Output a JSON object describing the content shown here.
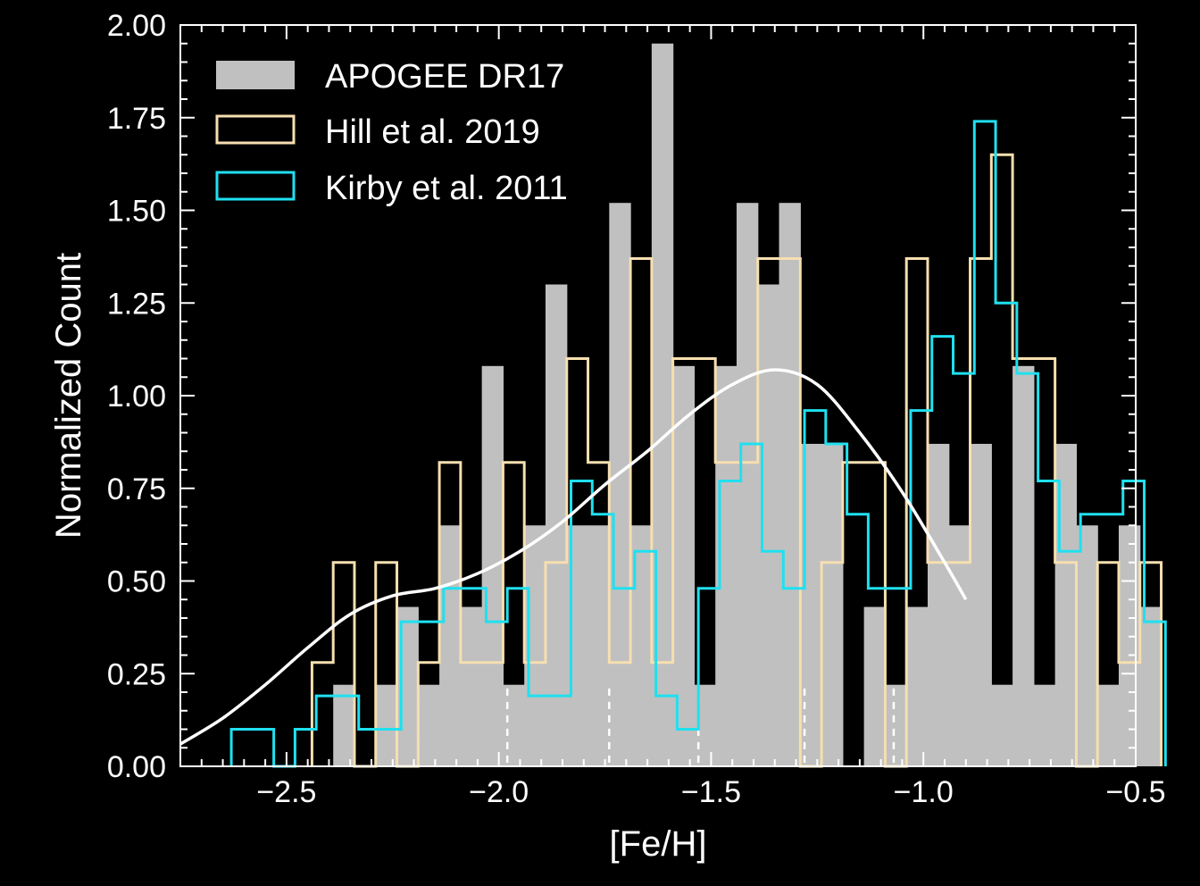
{
  "chart_data": {
    "type": "histogram",
    "xlabel": "[Fe/H]",
    "ylabel": "Normalized Count",
    "xlim": [
      -2.75,
      -0.5
    ],
    "ylim": [
      0,
      2.0
    ],
    "x_ticks": [
      -2.5,
      -2.0,
      -1.5,
      -1.0,
      -0.5
    ],
    "x_tick_labels": [
      "−2.5",
      "−2.0",
      "−1.5",
      "−1.0",
      "−0.5"
    ],
    "y_ticks": [
      0,
      0.25,
      0.5,
      0.75,
      1.0,
      1.25,
      1.5,
      1.75,
      2.0
    ],
    "y_tick_labels": [
      "0.00",
      "0.25",
      "0.50",
      "0.75",
      "1.00",
      "1.25",
      "1.50",
      "1.75",
      "2.00"
    ],
    "legend_position": "top-left",
    "grid": false,
    "background": "#000000",
    "series": [
      {
        "name": "APOGEE DR17",
        "style": "filled",
        "color": "#c0c0c0",
        "bins": [
          [
            -2.39,
            -2.34,
            0.22
          ],
          [
            -2.34,
            -2.29,
            0.0
          ],
          [
            -2.29,
            -2.24,
            0.22
          ],
          [
            -2.24,
            -2.19,
            0.43
          ],
          [
            -2.19,
            -2.14,
            0.22
          ],
          [
            -2.14,
            -2.09,
            0.65
          ],
          [
            -2.09,
            -2.04,
            0.43
          ],
          [
            -2.04,
            -1.99,
            1.08
          ],
          [
            -1.99,
            -1.94,
            0.22
          ],
          [
            -1.94,
            -1.89,
            0.65
          ],
          [
            -1.89,
            -1.84,
            1.3
          ],
          [
            -1.84,
            -1.79,
            0.65
          ],
          [
            -1.79,
            -1.74,
            0.65
          ],
          [
            -1.74,
            -1.69,
            1.52
          ],
          [
            -1.69,
            -1.64,
            0.65
          ],
          [
            -1.64,
            -1.59,
            1.95
          ],
          [
            -1.59,
            -1.54,
            1.08
          ],
          [
            -1.54,
            -1.49,
            0.22
          ],
          [
            -1.49,
            -1.44,
            1.08
          ],
          [
            -1.44,
            -1.39,
            1.52
          ],
          [
            -1.39,
            -1.34,
            1.3
          ],
          [
            -1.34,
            -1.29,
            1.52
          ],
          [
            -1.29,
            -1.24,
            0.87
          ],
          [
            -1.24,
            -1.19,
            0.87
          ],
          [
            -1.19,
            -1.14,
            0.0
          ],
          [
            -1.14,
            -1.09,
            0.43
          ],
          [
            -1.09,
            -1.04,
            0.22
          ],
          [
            -1.04,
            -0.99,
            0.43
          ],
          [
            -0.99,
            -0.94,
            0.87
          ],
          [
            -0.94,
            -0.89,
            0.65
          ],
          [
            -0.89,
            -0.84,
            0.87
          ],
          [
            -0.84,
            -0.79,
            0.22
          ],
          [
            -0.79,
            -0.74,
            1.08
          ],
          [
            -0.74,
            -0.69,
            0.22
          ],
          [
            -0.69,
            -0.64,
            0.87
          ],
          [
            -0.64,
            -0.59,
            0.65
          ],
          [
            -0.59,
            -0.54,
            0.22
          ],
          [
            -0.54,
            -0.49,
            0.65
          ],
          [
            -0.49,
            -0.44,
            0.43
          ]
        ]
      },
      {
        "name": "Hill et al. 2019",
        "style": "step",
        "color": "#f6dfb0",
        "bins": [
          [
            -2.44,
            -2.39,
            0.28
          ],
          [
            -2.39,
            -2.34,
            0.55
          ],
          [
            -2.34,
            -2.29,
            0.0
          ],
          [
            -2.29,
            -2.24,
            0.55
          ],
          [
            -2.24,
            -2.19,
            0.0
          ],
          [
            -2.19,
            -2.14,
            0.28
          ],
          [
            -2.14,
            -2.09,
            0.82
          ],
          [
            -2.09,
            -2.04,
            0.28
          ],
          [
            -2.04,
            -1.99,
            0.28
          ],
          [
            -1.99,
            -1.94,
            0.82
          ],
          [
            -1.94,
            -1.89,
            0.28
          ],
          [
            -1.89,
            -1.84,
            0.55
          ],
          [
            -1.84,
            -1.79,
            1.1
          ],
          [
            -1.79,
            -1.74,
            0.82
          ],
          [
            -1.74,
            -1.69,
            0.28
          ],
          [
            -1.69,
            -1.64,
            1.37
          ],
          [
            -1.64,
            -1.59,
            0.28
          ],
          [
            -1.59,
            -1.54,
            1.1
          ],
          [
            -1.54,
            -1.49,
            1.1
          ],
          [
            -1.49,
            -1.44,
            0.82
          ],
          [
            -1.44,
            -1.39,
            0.82
          ],
          [
            -1.39,
            -1.34,
            1.37
          ],
          [
            -1.34,
            -1.29,
            1.37
          ],
          [
            -1.29,
            -1.24,
            0.0
          ],
          [
            -1.24,
            -1.19,
            0.55
          ],
          [
            -1.19,
            -1.14,
            0.82
          ],
          [
            -1.14,
            -1.09,
            0.82
          ],
          [
            -1.09,
            -1.04,
            0.0
          ],
          [
            -1.04,
            -0.99,
            1.37
          ],
          [
            -0.99,
            -0.94,
            0.55
          ],
          [
            -0.94,
            -0.89,
            0.55
          ],
          [
            -0.89,
            -0.84,
            1.37
          ],
          [
            -0.84,
            -0.79,
            1.65
          ],
          [
            -0.79,
            -0.74,
            1.1
          ],
          [
            -0.74,
            -0.69,
            1.1
          ],
          [
            -0.69,
            -0.64,
            0.55
          ],
          [
            -0.64,
            -0.59,
            0.0
          ],
          [
            -0.59,
            -0.54,
            0.55
          ],
          [
            -0.54,
            -0.49,
            0.28
          ],
          [
            -0.49,
            -0.44,
            0.55
          ]
        ]
      },
      {
        "name": "Kirby et al. 2011",
        "style": "step",
        "color": "#1fe0f0",
        "bins": [
          [
            -2.63,
            -2.58,
            0.1
          ],
          [
            -2.58,
            -2.53,
            0.1
          ],
          [
            -2.53,
            -2.48,
            0.0
          ],
          [
            -2.48,
            -2.43,
            0.1
          ],
          [
            -2.43,
            -2.38,
            0.19
          ],
          [
            -2.38,
            -2.33,
            0.19
          ],
          [
            -2.33,
            -2.28,
            0.1
          ],
          [
            -2.28,
            -2.23,
            0.1
          ],
          [
            -2.23,
            -2.18,
            0.39
          ],
          [
            -2.18,
            -2.13,
            0.39
          ],
          [
            -2.13,
            -2.08,
            0.48
          ],
          [
            -2.08,
            -2.03,
            0.48
          ],
          [
            -2.03,
            -1.98,
            0.39
          ],
          [
            -1.98,
            -1.93,
            0.48
          ],
          [
            -1.93,
            -1.88,
            0.19
          ],
          [
            -1.88,
            -1.83,
            0.19
          ],
          [
            -1.83,
            -1.78,
            0.77
          ],
          [
            -1.78,
            -1.73,
            0.68
          ],
          [
            -1.73,
            -1.68,
            0.48
          ],
          [
            -1.68,
            -1.63,
            0.58
          ],
          [
            -1.63,
            -1.58,
            0.19
          ],
          [
            -1.58,
            -1.53,
            0.1
          ],
          [
            -1.53,
            -1.48,
            0.48
          ],
          [
            -1.48,
            -1.43,
            0.77
          ],
          [
            -1.43,
            -1.38,
            0.87
          ],
          [
            -1.38,
            -1.33,
            0.58
          ],
          [
            -1.33,
            -1.28,
            0.48
          ],
          [
            -1.28,
            -1.23,
            0.96
          ],
          [
            -1.23,
            -1.18,
            0.87
          ],
          [
            -1.18,
            -1.13,
            0.68
          ],
          [
            -1.13,
            -1.08,
            0.48
          ],
          [
            -1.08,
            -1.03,
            0.48
          ],
          [
            -1.03,
            -0.98,
            0.96
          ],
          [
            -0.98,
            -0.93,
            1.16
          ],
          [
            -0.93,
            -0.88,
            1.06
          ],
          [
            -0.88,
            -0.83,
            1.74
          ],
          [
            -0.83,
            -0.78,
            1.25
          ],
          [
            -0.78,
            -0.73,
            1.06
          ],
          [
            -0.73,
            -0.68,
            0.77
          ],
          [
            -0.68,
            -0.63,
            0.58
          ],
          [
            -0.63,
            -0.58,
            0.68
          ],
          [
            -0.58,
            -0.53,
            0.68
          ],
          [
            -0.53,
            -0.48,
            0.77
          ],
          [
            -0.48,
            -0.43,
            0.39
          ]
        ]
      },
      {
        "style": "curve",
        "color": "#ffffff",
        "x": [
          -2.75,
          -2.65,
          -2.55,
          -2.45,
          -2.35,
          -2.25,
          -2.15,
          -2.05,
          -1.95,
          -1.85,
          -1.75,
          -1.65,
          -1.55,
          -1.45,
          -1.35,
          -1.25,
          -1.15,
          -1.05,
          -0.95,
          -0.9
        ],
        "y": [
          0.06,
          0.13,
          0.22,
          0.32,
          0.41,
          0.46,
          0.48,
          0.52,
          0.58,
          0.66,
          0.76,
          0.85,
          0.95,
          1.03,
          1.07,
          1.03,
          0.9,
          0.74,
          0.55,
          0.45
        ]
      }
    ],
    "rug_marks": [
      -2.19,
      -1.98,
      -1.74,
      -1.53,
      -1.28,
      -1.07
    ]
  }
}
